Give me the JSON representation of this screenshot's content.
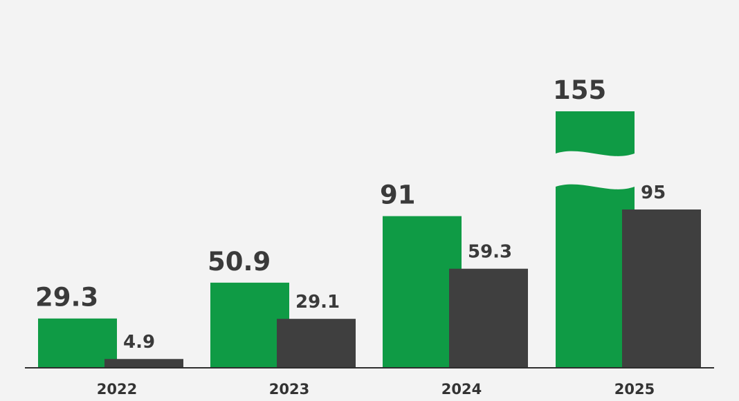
{
  "chart_data": {
    "type": "bar",
    "categories": [
      "2022",
      "2023",
      "2024",
      "2025"
    ],
    "series": [
      {
        "values": [
          29.3,
          50.9,
          91,
          155
        ],
        "labels": [
          "29.3",
          "50.9",
          "91",
          "155"
        ]
      },
      {
        "values": [
          4.9,
          29.1,
          59.3,
          95
        ],
        "labels": [
          "4.9",
          "29.1",
          "59.3",
          "95"
        ]
      }
    ],
    "colors": [
      "#0f9b45",
      "#3f3f3f"
    ],
    "axis_break": {
      "series": 0,
      "category": "2025"
    },
    "title": "",
    "xlabel": "",
    "ylabel": "",
    "ylim": [
      0,
      95
    ],
    "grid": false
  }
}
